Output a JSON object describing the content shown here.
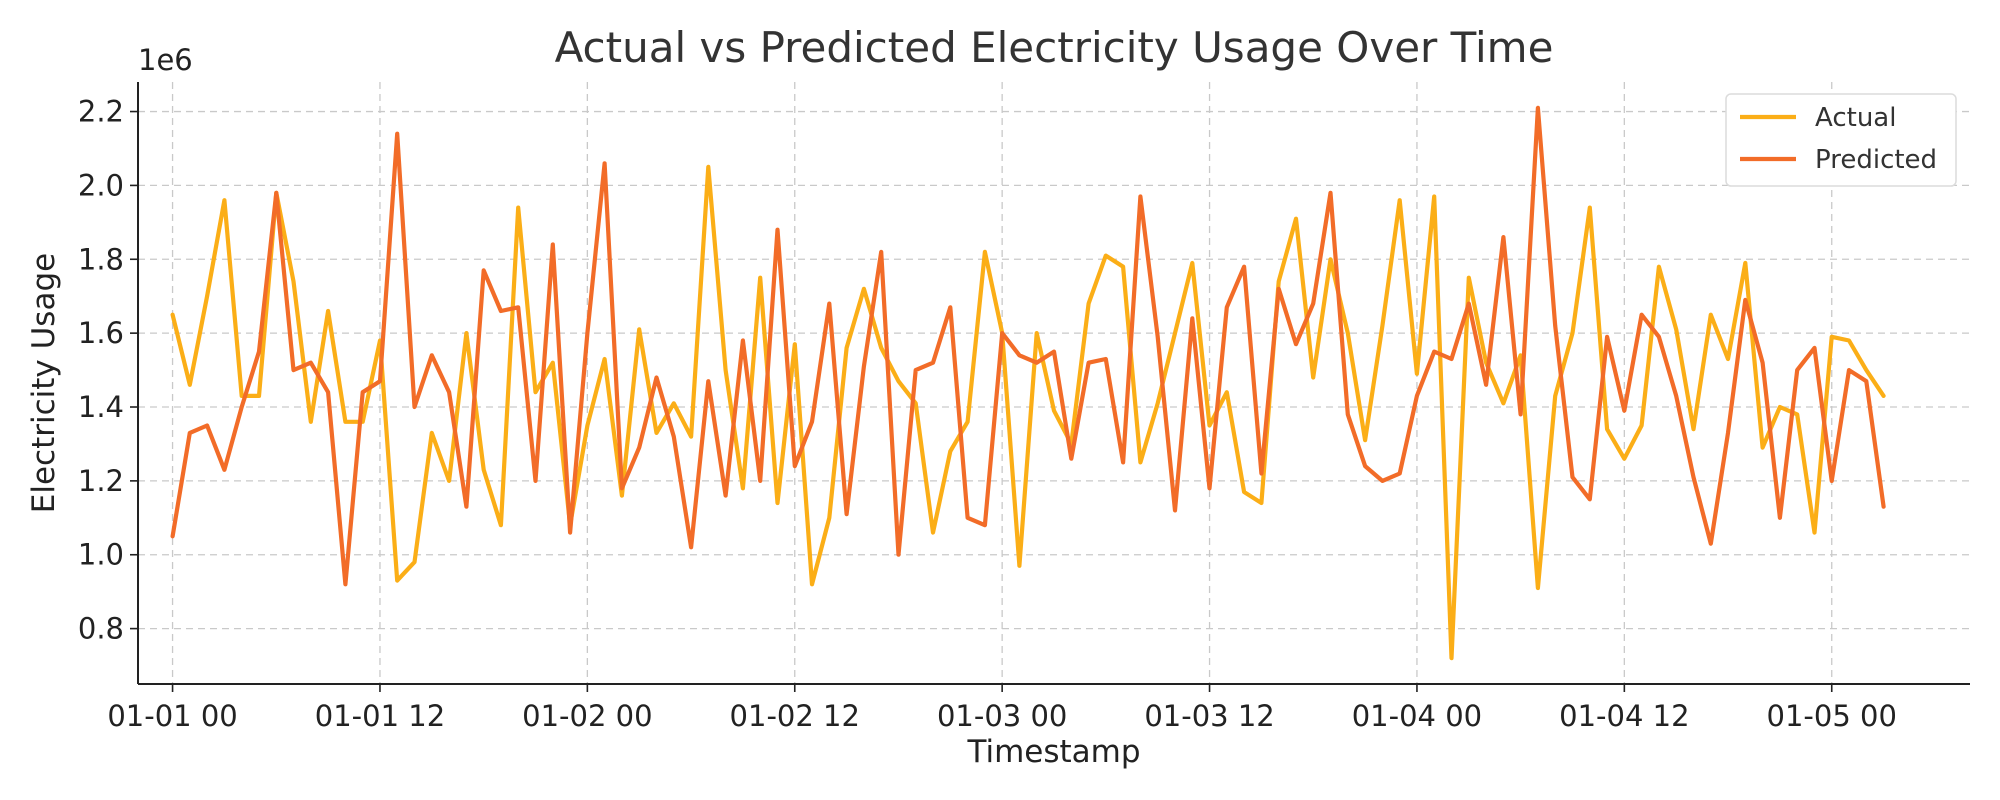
{
  "chart_data": {
    "type": "line",
    "title": "Actual vs Predicted Electricity Usage Over Time",
    "xlabel": "Timestamp",
    "ylabel": "Electricity Usage",
    "y_scale_label": "1e6",
    "y_multiplier": 1000000,
    "ylim": [
      0.65,
      2.28
    ],
    "yticks": [
      0.8,
      1.0,
      1.2,
      1.4,
      1.6,
      1.8,
      2.0,
      2.2
    ],
    "ytick_labels": [
      "0.8",
      "1.0",
      "1.2",
      "1.4",
      "1.6",
      "1.8",
      "2.0",
      "2.2"
    ],
    "x_start": "2024-01-01 00:00",
    "x_interval_hours": 1,
    "xlim_hours": [
      -2,
      104
    ],
    "xticks": [
      {
        "hour": 0,
        "label": "01-01 00"
      },
      {
        "hour": 12,
        "label": "01-01 12"
      },
      {
        "hour": 24,
        "label": "01-02 00"
      },
      {
        "hour": 36,
        "label": "01-02 12"
      },
      {
        "hour": 48,
        "label": "01-03 00"
      },
      {
        "hour": 60,
        "label": "01-03 12"
      },
      {
        "hour": 72,
        "label": "01-04 00"
      },
      {
        "hour": 84,
        "label": "01-04 12"
      },
      {
        "hour": 96,
        "label": "01-05 00"
      }
    ],
    "grid": true,
    "legend_position": "top-right",
    "series": [
      {
        "name": "Actual",
        "color": "#FBAE17",
        "values": [
          1.65,
          1.46,
          1.7,
          1.96,
          1.43,
          1.43,
          1.98,
          1.74,
          1.36,
          1.66,
          1.36,
          1.36,
          1.58,
          0.93,
          0.98,
          1.33,
          1.2,
          1.6,
          1.23,
          1.08,
          1.94,
          1.44,
          1.52,
          1.08,
          1.35,
          1.53,
          1.16,
          1.61,
          1.33,
          1.41,
          1.32,
          2.05,
          1.5,
          1.18,
          1.75,
          1.14,
          1.57,
          0.92,
          1.1,
          1.56,
          1.72,
          1.56,
          1.47,
          1.41,
          1.06,
          1.28,
          1.36,
          1.82,
          1.6,
          0.97,
          1.6,
          1.39,
          1.3,
          1.68,
          1.81,
          1.78,
          1.25,
          1.41,
          1.6,
          1.79,
          1.35,
          1.44,
          1.17,
          1.14,
          1.74,
          1.91,
          1.48,
          1.8,
          1.6,
          1.31,
          1.62,
          1.96,
          1.49,
          1.97,
          0.72,
          1.75,
          1.52,
          1.41,
          1.54,
          0.91,
          1.43,
          1.6,
          1.94,
          1.34,
          1.26,
          1.35,
          1.78,
          1.61,
          1.34,
          1.65,
          1.53,
          1.79,
          1.29,
          1.4,
          1.38,
          1.06,
          1.59,
          1.58,
          1.5,
          1.43
        ]
      },
      {
        "name": "Predicted",
        "color": "#F26C28",
        "values": [
          1.05,
          1.33,
          1.35,
          1.23,
          1.4,
          1.55,
          1.98,
          1.5,
          1.52,
          1.44,
          0.92,
          1.44,
          1.47,
          2.14,
          1.4,
          1.54,
          1.44,
          1.13,
          1.77,
          1.66,
          1.67,
          1.2,
          1.84,
          1.06,
          1.6,
          2.06,
          1.18,
          1.29,
          1.48,
          1.32,
          1.02,
          1.47,
          1.16,
          1.58,
          1.2,
          1.88,
          1.24,
          1.36,
          1.68,
          1.11,
          1.51,
          1.82,
          1.0,
          1.5,
          1.52,
          1.67,
          1.1,
          1.08,
          1.6,
          1.54,
          1.52,
          1.55,
          1.26,
          1.52,
          1.53,
          1.25,
          1.97,
          1.59,
          1.12,
          1.64,
          1.18,
          1.67,
          1.78,
          1.22,
          1.72,
          1.57,
          1.68,
          1.98,
          1.38,
          1.24,
          1.2,
          1.22,
          1.43,
          1.55,
          1.53,
          1.68,
          1.46,
          1.86,
          1.38,
          2.21,
          1.62,
          1.21,
          1.15,
          1.59,
          1.39,
          1.65,
          1.59,
          1.43,
          1.21,
          1.03,
          1.33,
          1.69,
          1.52,
          1.1,
          1.5,
          1.56,
          1.2,
          1.5,
          1.47,
          1.13
        ]
      }
    ]
  }
}
